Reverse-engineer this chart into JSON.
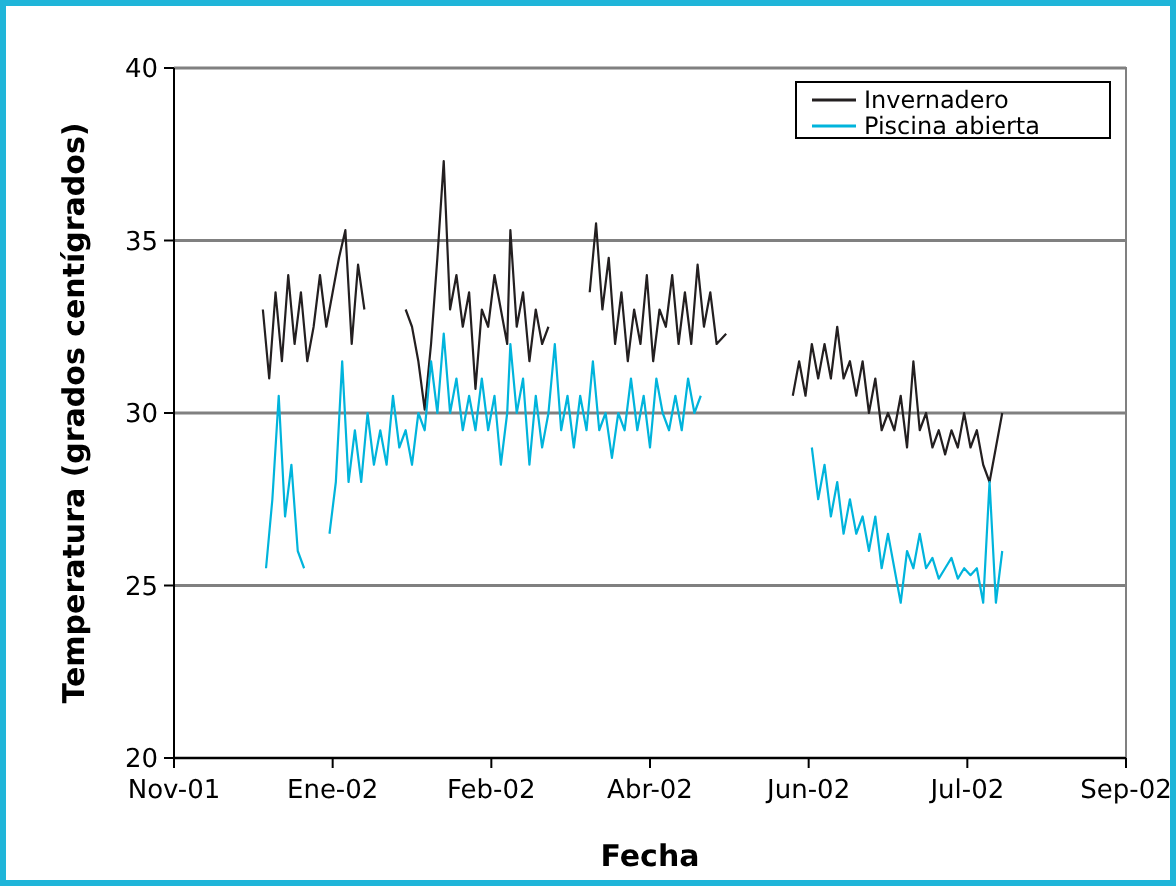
{
  "chart_data": {
    "type": "line",
    "xlabel": "Fecha",
    "ylabel": "Temperatura (grados centígrados)",
    "xlim": [
      "2001-11-15",
      "2002-09-11"
    ],
    "xticks": [
      {
        "value": "2001-11-15",
        "label": "Nov-01"
      },
      {
        "value": "2002-01-04",
        "label": "Ene-02"
      },
      {
        "value": "2002-02-23",
        "label": "Feb-02"
      },
      {
        "value": "2002-04-14",
        "label": "Abr-02"
      },
      {
        "value": "2002-06-03",
        "label": "Jun-02"
      },
      {
        "value": "2002-07-23",
        "label": "Jul-02"
      },
      {
        "value": "2002-09-11",
        "label": "Sep-02"
      }
    ],
    "ylim": [
      20,
      40
    ],
    "yticks": [
      20,
      25,
      30,
      35,
      40
    ],
    "grid": "y",
    "legend": "top right",
    "marker": "none",
    "line_style": "solid",
    "series": [
      {
        "name": "Invernadero",
        "color": "#231f20",
        "x": [
          "2001-12-13",
          "2001-12-15",
          "2001-12-17",
          "2001-12-19",
          "2001-12-21",
          "2001-12-23",
          "2001-12-25",
          "2001-12-27",
          "2001-12-29",
          "2001-12-31",
          "2002-01-02",
          "2002-01-04",
          "2002-01-06",
          "2002-01-08",
          "2002-01-10",
          "2002-01-12",
          "2002-01-14",
          "2002-01-20",
          "2002-01-27",
          "2002-01-29",
          "2002-01-31",
          "2002-02-02",
          "2002-02-04",
          "2002-02-06",
          "2002-02-08",
          "2002-02-10",
          "2002-02-12",
          "2002-02-14",
          "2002-02-16",
          "2002-02-18",
          "2002-02-20",
          "2002-02-22",
          "2002-02-24",
          "2002-02-26",
          "2002-02-28",
          "2002-03-01",
          "2002-03-03",
          "2002-03-05",
          "2002-03-07",
          "2002-03-09",
          "2002-03-11",
          "2002-03-13",
          "2002-03-20",
          "2002-03-26",
          "2002-03-28",
          "2002-03-30",
          "2002-04-01",
          "2002-04-03",
          "2002-04-05",
          "2002-04-07",
          "2002-04-09",
          "2002-04-11",
          "2002-04-13",
          "2002-04-15",
          "2002-04-17",
          "2002-04-19",
          "2002-04-21",
          "2002-04-23",
          "2002-04-25",
          "2002-04-27",
          "2002-04-29",
          "2002-05-01",
          "2002-05-03",
          "2002-05-05",
          "2002-05-08",
          "2002-05-20",
          "2002-05-29",
          "2002-05-31",
          "2002-06-02",
          "2002-06-04",
          "2002-06-06",
          "2002-06-08",
          "2002-06-10",
          "2002-06-12",
          "2002-06-14",
          "2002-06-16",
          "2002-06-18",
          "2002-06-20",
          "2002-06-22",
          "2002-06-24",
          "2002-06-26",
          "2002-06-28",
          "2002-06-30",
          "2002-07-02",
          "2002-07-04",
          "2002-07-06",
          "2002-07-08",
          "2002-07-10",
          "2002-07-12",
          "2002-07-14",
          "2002-07-16",
          "2002-07-18",
          "2002-07-20",
          "2002-07-22",
          "2002-07-24",
          "2002-07-26",
          "2002-07-28",
          "2002-07-30",
          "2002-08-01",
          "2002-08-03"
        ],
        "values": [
          33,
          31,
          33.5,
          31.5,
          34,
          32,
          33.5,
          31.5,
          32.5,
          34,
          32.5,
          33.5,
          34.5,
          35.3,
          32,
          34.3,
          33,
          null,
          33,
          32.5,
          31.5,
          30.1,
          32,
          34.5,
          37.3,
          33,
          34,
          32.5,
          33.5,
          30.7,
          33,
          32.5,
          34,
          33,
          32,
          35.3,
          32.5,
          33.5,
          31.5,
          33,
          32,
          32.5,
          null,
          33.5,
          35.5,
          33,
          34.5,
          32,
          33.5,
          31.5,
          33,
          32,
          34,
          31.5,
          33,
          32.5,
          34,
          32,
          33.5,
          32,
          34.3,
          32.5,
          33.5,
          32,
          32.3,
          null,
          30.5,
          31.5,
          30.5,
          32,
          31,
          32,
          31,
          32.5,
          31,
          31.5,
          30.5,
          31.5,
          30,
          31,
          29.5,
          30,
          29.5,
          30.5,
          29,
          31.5,
          29.5,
          30,
          29,
          29.5,
          28.8,
          29.5,
          29,
          30,
          29,
          29.5,
          28.5,
          28,
          29,
          30
        ]
      },
      {
        "name": "Piscina abierta",
        "color": "#00b4dc",
        "x": [
          "2001-12-14",
          "2001-12-16",
          "2001-12-18",
          "2001-12-20",
          "2001-12-22",
          "2001-12-24",
          "2001-12-26",
          "2001-12-30",
          "2002-01-03",
          "2002-01-05",
          "2002-01-07",
          "2002-01-09",
          "2002-01-11",
          "2002-01-13",
          "2002-01-15",
          "2002-01-17",
          "2002-01-19",
          "2002-01-21",
          "2002-01-23",
          "2002-01-25",
          "2002-01-27",
          "2002-01-29",
          "2002-01-31",
          "2002-02-02",
          "2002-02-04",
          "2002-02-06",
          "2002-02-08",
          "2002-02-10",
          "2002-02-12",
          "2002-02-14",
          "2002-02-16",
          "2002-02-18",
          "2002-02-20",
          "2002-02-22",
          "2002-02-24",
          "2002-02-26",
          "2002-02-28",
          "2002-03-01",
          "2002-03-03",
          "2002-03-05",
          "2002-03-07",
          "2002-03-09",
          "2002-03-11",
          "2002-03-13",
          "2002-03-15",
          "2002-03-17",
          "2002-03-19",
          "2002-03-21",
          "2002-03-23",
          "2002-03-25",
          "2002-03-27",
          "2002-03-29",
          "2002-03-31",
          "2002-04-02",
          "2002-04-04",
          "2002-04-06",
          "2002-04-08",
          "2002-04-10",
          "2002-04-12",
          "2002-04-14",
          "2002-04-16",
          "2002-04-18",
          "2002-04-20",
          "2002-04-22",
          "2002-04-24",
          "2002-04-26",
          "2002-04-28",
          "2002-04-30",
          "2002-05-20",
          "2002-06-04",
          "2002-06-06",
          "2002-06-08",
          "2002-06-10",
          "2002-06-12",
          "2002-06-14",
          "2002-06-16",
          "2002-06-18",
          "2002-06-20",
          "2002-06-22",
          "2002-06-24",
          "2002-06-26",
          "2002-06-28",
          "2002-06-30",
          "2002-07-02",
          "2002-07-04",
          "2002-07-06",
          "2002-07-08",
          "2002-07-10",
          "2002-07-12",
          "2002-07-14",
          "2002-07-16",
          "2002-07-18",
          "2002-07-20",
          "2002-07-22",
          "2002-07-24",
          "2002-07-26",
          "2002-07-28",
          "2002-07-30",
          "2002-08-01",
          "2002-08-03"
        ],
        "values": [
          25.5,
          27.5,
          30.5,
          27,
          28.5,
          26,
          25.5,
          null,
          26.5,
          28,
          31.5,
          28,
          29.5,
          28,
          30,
          28.5,
          29.5,
          28.5,
          30.5,
          29,
          29.5,
          28.5,
          30,
          29.5,
          31.5,
          30,
          32.3,
          30,
          31,
          29.5,
          30.5,
          29.5,
          31,
          29.5,
          30.5,
          28.5,
          30,
          32,
          30,
          31,
          28.5,
          30.5,
          29,
          30,
          32,
          29.5,
          30.5,
          29,
          30.5,
          29.5,
          31.5,
          29.5,
          30,
          28.7,
          30,
          29.5,
          31,
          29.5,
          30.5,
          29,
          31,
          30,
          29.5,
          30.5,
          29.5,
          31,
          30,
          30.5,
          null,
          29,
          27.5,
          28.5,
          27,
          28,
          26.5,
          27.5,
          26.5,
          27,
          26,
          27,
          25.5,
          26.5,
          25.5,
          24.5,
          26,
          25.5,
          26.5,
          25.5,
          25.8,
          25.2,
          25.5,
          25.8,
          25.2,
          25.5,
          25.3,
          25.5,
          24.5,
          28,
          24.5,
          26
        ]
      }
    ]
  }
}
